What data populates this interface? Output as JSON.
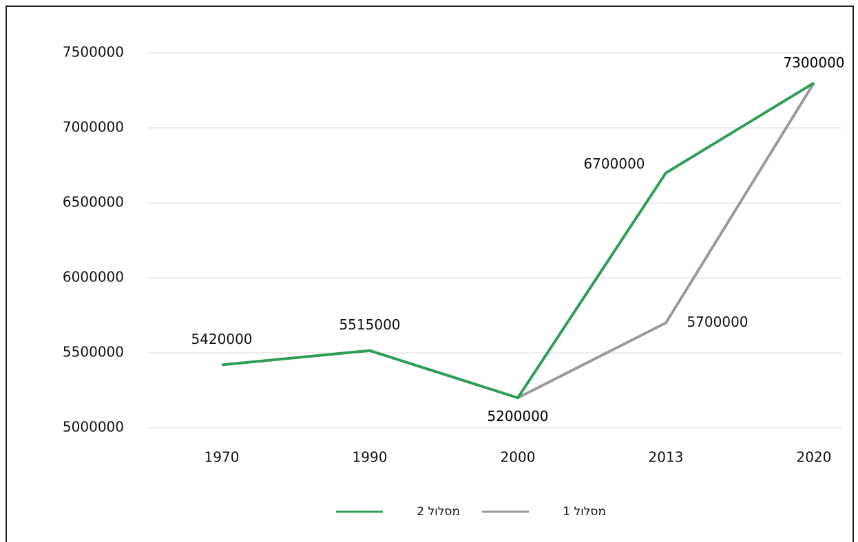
{
  "chart_data": {
    "type": "line",
    "categories": [
      "1970",
      "1990",
      "2000",
      "2013",
      "2020"
    ],
    "series": [
      {
        "name": "מסלול 2",
        "color": "#2e9e56",
        "values": [
          5420000,
          5515000,
          5200000,
          6700000,
          7300000
        ]
      },
      {
        "name": "מסלול 1",
        "color": "#9a9a9c",
        "values": [
          null,
          null,
          5200000,
          5700000,
          7300000
        ]
      }
    ],
    "ylim": [
      5000000,
      7500000
    ],
    "yticks": [
      5000000,
      5500000,
      6000000,
      6500000,
      7000000,
      7500000
    ],
    "grid": true,
    "legend": "bottom"
  }
}
